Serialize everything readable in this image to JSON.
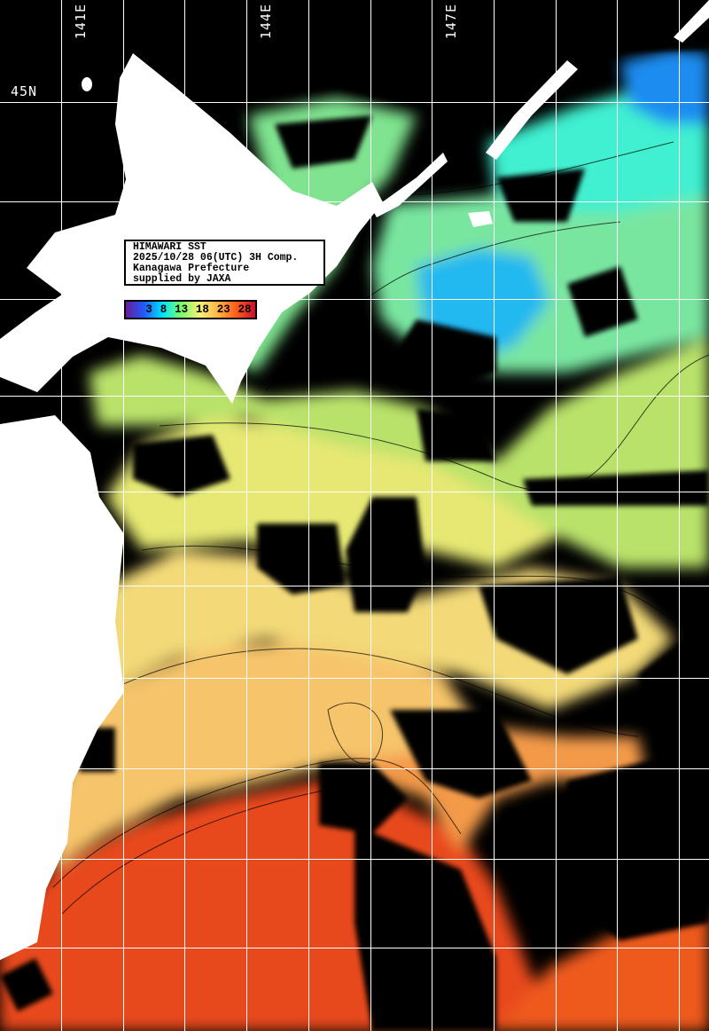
{
  "map": {
    "info": {
      "title": "HIMAWARI SST",
      "datetime": "2025/10/28 06(UTC) 3H Comp.",
      "org": "Kanagawa Prefecture",
      "credit": "supplied by JAXA"
    },
    "colorbar": {
      "labels": [
        "3",
        "8",
        "13",
        "18",
        "23",
        "28"
      ],
      "colors": [
        "#6a1b9a",
        "#1e5cff",
        "#00e5ff",
        "#7cfc6a",
        "#f5f07a",
        "#ffb347",
        "#ff5a1a",
        "#c8102e"
      ]
    },
    "lon_labels": [
      "141E",
      "144E",
      "147E"
    ],
    "lat_labels": [
      "45N"
    ],
    "colors": {
      "land": "#ffffff",
      "cloud_or_nodata": "#000000",
      "grid": "#ffffff"
    }
  }
}
